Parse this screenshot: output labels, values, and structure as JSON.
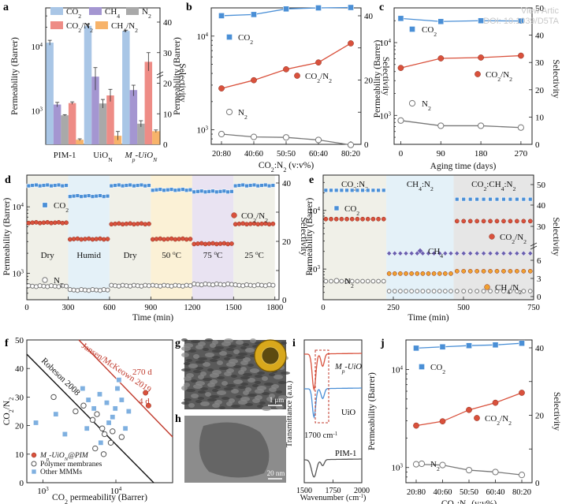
{
  "watermark": [
    "View Artic",
    "DOI: 10.1039/D5TA"
  ],
  "chart_data": [
    {
      "panel": "a",
      "type": "bar",
      "categories": [
        "PIM-1",
        "UiO_N",
        "M_p-UiO_N"
      ],
      "ylabel": "Permeability (Barrer)",
      "y2label": "Selectivity",
      "yscale": "log",
      "ylim": [
        300,
        40000
      ],
      "y2lim": [
        0,
        40
      ],
      "legend": "top",
      "series": [
        {
          "name": "CO2",
          "axis": "left",
          "color": "#a9c6e6",
          "values": [
            11500,
            21000,
            17500
          ],
          "err": [
            1000,
            1400,
            500
          ]
        },
        {
          "name": "CH4",
          "axis": "left",
          "color": "#a496d1",
          "values": [
            1250,
            3400,
            2100
          ],
          "err": [
            100,
            1300,
            400
          ]
        },
        {
          "name": "N2",
          "axis": "left",
          "color": "#a9a9a9",
          "values": [
            850,
            1300,
            630
          ],
          "err": [
            20,
            200,
            70
          ]
        },
        {
          "name": "CO2/N2",
          "axis": "right",
          "color": "#ee8c86",
          "values": [
            13.5,
            16,
            27
          ],
          "err": [
            0.4,
            2,
            3
          ]
        },
        {
          "name": "CH4/N2",
          "axis": "right",
          "color": "#f7b36a",
          "values": [
            1.5,
            2.8,
            4.3
          ],
          "err": [
            0.3,
            1.4,
            0.4
          ]
        }
      ]
    },
    {
      "panel": "b",
      "type": "line",
      "categories": [
        "20:80",
        "40:60",
        "50:50",
        "60:40",
        "80:20"
      ],
      "xlabel": "CO2:N2 (v:v%)",
      "ylabel": "Permeability (Barrer)",
      "y2label": "Selectivity",
      "yscale": "log",
      "ylim": [
        700,
        20000
      ],
      "y2lim": [
        0,
        50
      ],
      "series": [
        {
          "name": "CO2",
          "axis": "left",
          "marker": "square",
          "color": "#4a8fd6",
          "values": [
            16500,
            17000,
            19500,
            20000,
            20200
          ]
        },
        {
          "name": "CO2/N2",
          "axis": "right",
          "marker": "circle",
          "color": "#d9513c",
          "values": [
            20.5,
            23.5,
            27.5,
            30,
            37
          ]
        },
        {
          "name": "N2",
          "axis": "left",
          "marker": "circle-open",
          "color": "#777777",
          "values": [
            900,
            840,
            830,
            780,
            690
          ]
        }
      ]
    },
    {
      "panel": "c",
      "type": "line",
      "x": [
        0,
        90,
        180,
        270
      ],
      "xlabel": "Aging time (days)",
      "ylabel": "Permeability (Barrer)",
      "y2label": "Selectivity",
      "yscale": "log",
      "ylim": [
        400,
        30000
      ],
      "y2lim": [
        0,
        50
      ],
      "xlim": [
        -15,
        295
      ],
      "series": [
        {
          "name": "CO2",
          "axis": "left",
          "marker": "square",
          "color": "#4a8fd6",
          "values": [
            21500,
            19500,
            20000,
            19800
          ]
        },
        {
          "name": "CO2/N2",
          "axis": "right",
          "marker": "circle",
          "color": "#d9513c",
          "values": [
            28,
            31.5,
            31.8,
            32.5
          ]
        },
        {
          "name": "N2",
          "axis": "left",
          "marker": "circle-open",
          "color": "#777777",
          "values": [
            850,
            720,
            720,
            680
          ]
        }
      ]
    },
    {
      "panel": "d",
      "type": "scatter",
      "xlabel": "Time (min)",
      "ylabel": "Permeability (Barrer)",
      "y2label": "Selectivity",
      "yscale": "log",
      "ylim": [
        400,
        30000
      ],
      "y2lim": [
        0,
        50
      ],
      "xlim": [
        0,
        1830
      ],
      "segments": [
        {
          "label": "Dry",
          "x0": 0,
          "x1": 300,
          "bg": "#f0f0e8",
          "co2": 21000,
          "n2": 640,
          "sel": 33
        },
        {
          "label": "Humid",
          "x0": 300,
          "x1": 600,
          "bg": "#e4f1f8",
          "co2": 14500,
          "n2": 560,
          "sel": 26
        },
        {
          "label": "Dry",
          "x0": 600,
          "x1": 900,
          "bg": "#f0f0e8",
          "co2": 21000,
          "n2": 650,
          "sel": 32.5
        },
        {
          "label": "50 oC",
          "x0": 900,
          "x1": 1200,
          "bg": "#fbf1d6",
          "co2": 18000,
          "n2": 650,
          "sel": 26
        },
        {
          "label": "75 oC",
          "x0": 1200,
          "x1": 1500,
          "bg": "#e9e3f2",
          "co2": 17000,
          "n2": 680,
          "sel": 24
        },
        {
          "label": "25 oC",
          "x0": 1500,
          "x1": 1800,
          "bg": "#f0f0e8",
          "co2": 21000,
          "n2": 660,
          "sel": 32.5
        }
      ],
      "series_labels": [
        "CO2",
        "CO2/N2",
        "N2"
      ]
    },
    {
      "panel": "e",
      "type": "scatter",
      "xlabel": "Time (min)",
      "ylabel": "Permeability (Barrer)",
      "y2label": "Selectivity",
      "yscale": "log",
      "ylim": [
        300,
        40000
      ],
      "y2lim": [
        0,
        50
      ],
      "xlim": [
        0,
        750
      ],
      "segments": [
        {
          "label": "CO2:N2",
          "x0": 0,
          "x1": 225,
          "bg": "#f0f0e8"
        },
        {
          "label": "CH4:N2",
          "x0": 225,
          "x1": 465,
          "bg": "#e4f1f8"
        },
        {
          "label": "CO2:CH4:N2",
          "x0": 465,
          "x1": 750,
          "bg": "#e6e6e6"
        }
      ],
      "series": [
        {
          "name": "CO2",
          "color": "#4a8fd6",
          "values": [
            22000,
            null,
            15500
          ]
        },
        {
          "name": "CO2/N2",
          "color": "#d9513c",
          "values": [
            33.5,
            null,
            32.5
          ]
        },
        {
          "name": "CH4",
          "color": "#6a5fb0",
          "values": [
            null,
            1850,
            1850
          ]
        },
        {
          "name": "CH4/N2",
          "color": "#f0a030",
          "values": [
            null,
            3.8,
            4.2
          ]
        },
        {
          "name": "N2",
          "color": "#777777",
          "values": [
            620,
            420,
            420
          ]
        }
      ]
    },
    {
      "panel": "f",
      "type": "scatter",
      "xlabel": "CO2 permeability (Barrer)",
      "ylabel": "CO2/N2",
      "xscale": "log",
      "yscale": "linear",
      "xlim": [
        600,
        60000
      ],
      "ylim": [
        0,
        50
      ],
      "bounds": [
        "Robeson 2008",
        "Jansen/McKeown 2019"
      ],
      "annotations": [
        "270 d",
        "4 d"
      ],
      "legend": "bottom-left",
      "series": [
        {
          "name": "M_p-UiO_N@PIM",
          "marker": "circle",
          "color": "#d9513c",
          "points": [
            [
              25500,
              31.5
            ],
            [
              28000,
              27
            ]
          ]
        },
        {
          "name": "Polymer membranes",
          "marker": "circle-open",
          "color": "#555555",
          "points": [
            [
              1400,
              30
            ],
            [
              2800,
              25
            ],
            [
              5500,
              24
            ],
            [
              6500,
              19
            ],
            [
              7000,
              17
            ],
            [
              9000,
              18
            ],
            [
              12000,
              16
            ],
            [
              4800,
              22
            ],
            [
              3600,
              27
            ],
            [
              8500,
              14
            ],
            [
              5200,
              12
            ],
            [
              6800,
              10
            ]
          ]
        },
        {
          "name": "Other MMMs",
          "marker": "square",
          "color": "#7fb0e0",
          "points": [
            [
              800,
              21
            ],
            [
              1500,
              24
            ],
            [
              3500,
              33
            ],
            [
              4000,
              19
            ],
            [
              5000,
              26
            ],
            [
              6000,
              31
            ],
            [
              7500,
              28
            ],
            [
              9000,
              23
            ],
            [
              10500,
              33
            ],
            [
              12000,
              29
            ],
            [
              15000,
              25
            ],
            [
              11000,
              36
            ],
            [
              2000,
              17
            ],
            [
              6200,
              14
            ],
            [
              8000,
              21
            ],
            [
              13500,
              19
            ],
            [
              4200,
              29
            ],
            [
              9800,
              26
            ]
          ]
        }
      ]
    },
    {
      "panel": "i",
      "type": "line",
      "xlabel": "Wavenumber (cm-1)",
      "ylabel": "Transmittance (a.u.)",
      "xlim": [
        1500,
        2000
      ],
      "annotation": "1700 cm-1",
      "series": [
        {
          "name": "M_p-UiO",
          "color": "#d9513c"
        },
        {
          "name": "UiO",
          "color": "#4a8fd6"
        },
        {
          "name": "PIM-1",
          "color": "#555555"
        }
      ]
    },
    {
      "panel": "j",
      "type": "line",
      "categories": [
        "20:80",
        "40:60",
        "50:50",
        "60:40",
        "80:20"
      ],
      "xlabel": "CO2:N2 (v:v%)",
      "ylabel": "Permeability (Barrer)",
      "y2label": "Selectivity",
      "yscale": "log",
      "ylim": [
        700,
        20000
      ],
      "y2lim": [
        0,
        50
      ],
      "series": [
        {
          "name": "CO2",
          "axis": "left",
          "marker": "square",
          "color": "#4a8fd6",
          "values": [
            16500,
            17000,
            17500,
            17800,
            18500
          ]
        },
        {
          "name": "CO2/N2",
          "axis": "right",
          "marker": "circle",
          "color": "#d9513c",
          "values": [
            20,
            21.5,
            25.5,
            28,
            31.5
          ]
        },
        {
          "name": "N2",
          "axis": "left",
          "marker": "circle-open",
          "color": "#777777",
          "values": [
            1080,
            1060,
            940,
            900,
            840
          ]
        }
      ]
    }
  ],
  "images": {
    "g": {
      "label": "g",
      "scale": "1 μm"
    },
    "h": {
      "label": "h",
      "scale": "20 nm"
    }
  }
}
